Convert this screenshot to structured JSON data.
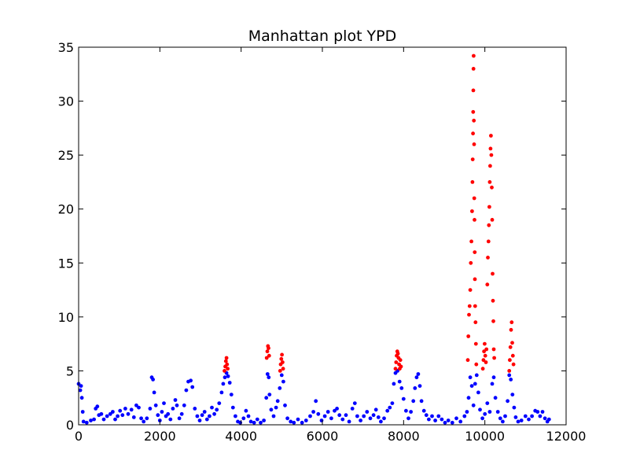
{
  "chart_data": {
    "type": "scatter",
    "title": "Manhattan plot YPD",
    "xlabel": "",
    "ylabel": "",
    "xlim": [
      0,
      12000
    ],
    "ylim": [
      0,
      35
    ],
    "xticks": [
      "0",
      "2000",
      "4000",
      "6000",
      "8000",
      "10000",
      "12000"
    ],
    "yticks": [
      "0",
      "5",
      "10",
      "15",
      "20",
      "25",
      "30",
      "35"
    ],
    "xtick_values": [
      0,
      2000,
      4000,
      6000,
      8000,
      10000,
      12000
    ],
    "ytick_values": [
      0,
      5,
      10,
      15,
      20,
      25,
      30,
      35
    ],
    "grid": false,
    "legend": "none",
    "colors": {
      "below_threshold": "#0000ff",
      "above_threshold": "#ff0000"
    },
    "series": [
      {
        "color": "#0000ff",
        "points": [
          [
            0,
            3.8
          ],
          [
            40,
            3.2
          ],
          [
            60,
            3.6
          ],
          [
            80,
            2.5
          ],
          [
            100,
            1.2
          ],
          [
            120,
            0.3
          ],
          [
            200,
            0.2
          ],
          [
            300,
            0.4
          ],
          [
            380,
            0.5
          ],
          [
            420,
            1.5
          ],
          [
            460,
            1.7
          ],
          [
            500,
            0.9
          ],
          [
            560,
            1.0
          ],
          [
            620,
            0.5
          ],
          [
            700,
            0.8
          ],
          [
            780,
            1.0
          ],
          [
            840,
            1.2
          ],
          [
            900,
            0.5
          ],
          [
            960,
            0.8
          ],
          [
            1020,
            1.3
          ],
          [
            1080,
            0.9
          ],
          [
            1150,
            1.5
          ],
          [
            1220,
            1.0
          ],
          [
            1300,
            1.4
          ],
          [
            1360,
            0.7
          ],
          [
            1420,
            1.8
          ],
          [
            1480,
            1.6
          ],
          [
            1540,
            0.6
          ],
          [
            1600,
            0.3
          ],
          [
            1680,
            0.6
          ],
          [
            1760,
            1.5
          ],
          [
            1800,
            4.4
          ],
          [
            1830,
            4.2
          ],
          [
            1860,
            3.0
          ],
          [
            1900,
            1.8
          ],
          [
            1950,
            0.9
          ],
          [
            2000,
            0.4
          ],
          [
            2050,
            1.2
          ],
          [
            2100,
            2.0
          ],
          [
            2150,
            0.8
          ],
          [
            2200,
            1.0
          ],
          [
            2260,
            0.5
          ],
          [
            2320,
            1.5
          ],
          [
            2380,
            2.3
          ],
          [
            2420,
            1.8
          ],
          [
            2480,
            0.6
          ],
          [
            2540,
            1.0
          ],
          [
            2600,
            1.8
          ],
          [
            2650,
            3.2
          ],
          [
            2700,
            4.0
          ],
          [
            2760,
            4.1
          ],
          [
            2800,
            3.5
          ],
          [
            2860,
            1.5
          ],
          [
            2920,
            0.8
          ],
          [
            2980,
            0.4
          ],
          [
            3040,
            0.9
          ],
          [
            3100,
            1.2
          ],
          [
            3160,
            0.5
          ],
          [
            3220,
            0.8
          ],
          [
            3280,
            1.6
          ],
          [
            3340,
            1.0
          ],
          [
            3400,
            1.4
          ],
          [
            3460,
            2.0
          ],
          [
            3520,
            3.0
          ],
          [
            3560,
            3.8
          ],
          [
            3600,
            4.4
          ],
          [
            3640,
            4.8
          ],
          [
            3680,
            4.5
          ],
          [
            3720,
            3.9
          ],
          [
            3760,
            2.8
          ],
          [
            3800,
            1.6
          ],
          [
            3860,
            0.8
          ],
          [
            3920,
            0.3
          ],
          [
            3980,
            0.2
          ],
          [
            4060,
            0.6
          ],
          [
            4120,
            1.3
          ],
          [
            4180,
            0.8
          ],
          [
            4240,
            0.3
          ],
          [
            4320,
            0.2
          ],
          [
            4400,
            0.5
          ],
          [
            4480,
            0.2
          ],
          [
            4560,
            0.4
          ],
          [
            4620,
            2.5
          ],
          [
            4650,
            4.7
          ],
          [
            4680,
            4.4
          ],
          [
            4700,
            2.8
          ],
          [
            4740,
            1.4
          ],
          [
            4800,
            0.8
          ],
          [
            4860,
            1.6
          ],
          [
            4900,
            2.2
          ],
          [
            4950,
            3.4
          ],
          [
            5000,
            4.6
          ],
          [
            5040,
            4.0
          ],
          [
            5080,
            1.8
          ],
          [
            5140,
            0.6
          ],
          [
            5220,
            0.3
          ],
          [
            5300,
            0.2
          ],
          [
            5400,
            0.5
          ],
          [
            5500,
            0.2
          ],
          [
            5600,
            0.4
          ],
          [
            5700,
            0.8
          ],
          [
            5780,
            1.2
          ],
          [
            5840,
            2.2
          ],
          [
            5900,
            1.0
          ],
          [
            5980,
            0.4
          ],
          [
            6060,
            0.8
          ],
          [
            6140,
            1.2
          ],
          [
            6220,
            0.6
          ],
          [
            6300,
            1.3
          ],
          [
            6360,
            1.5
          ],
          [
            6420,
            0.9
          ],
          [
            6500,
            0.5
          ],
          [
            6580,
            0.9
          ],
          [
            6660,
            0.3
          ],
          [
            6740,
            1.5
          ],
          [
            6800,
            2.0
          ],
          [
            6860,
            0.8
          ],
          [
            6940,
            0.4
          ],
          [
            7020,
            0.8
          ],
          [
            7100,
            1.2
          ],
          [
            7180,
            0.6
          ],
          [
            7260,
            0.9
          ],
          [
            7320,
            1.4
          ],
          [
            7380,
            0.7
          ],
          [
            7440,
            0.3
          ],
          [
            7520,
            0.6
          ],
          [
            7600,
            1.3
          ],
          [
            7660,
            1.6
          ],
          [
            7720,
            2.0
          ],
          [
            7760,
            3.8
          ],
          [
            7800,
            4.8
          ],
          [
            7850,
            5.0
          ],
          [
            7900,
            4.0
          ],
          [
            7950,
            3.4
          ],
          [
            8000,
            2.4
          ],
          [
            8060,
            1.3
          ],
          [
            8120,
            0.6
          ],
          [
            8180,
            1.2
          ],
          [
            8240,
            2.2
          ],
          [
            8280,
            3.4
          ],
          [
            8320,
            4.4
          ],
          [
            8360,
            4.7
          ],
          [
            8400,
            3.6
          ],
          [
            8440,
            2.2
          ],
          [
            8500,
            1.3
          ],
          [
            8560,
            0.9
          ],
          [
            8620,
            0.5
          ],
          [
            8700,
            0.8
          ],
          [
            8780,
            0.4
          ],
          [
            8860,
            0.8
          ],
          [
            8940,
            0.5
          ],
          [
            9020,
            0.2
          ],
          [
            9100,
            0.4
          ],
          [
            9200,
            0.2
          ],
          [
            9300,
            0.6
          ],
          [
            9400,
            0.3
          ],
          [
            9500,
            0.8
          ],
          [
            9560,
            1.2
          ],
          [
            9600,
            2.5
          ],
          [
            9640,
            4.4
          ],
          [
            9680,
            3.6
          ],
          [
            9720,
            1.8
          ],
          [
            9760,
            3.8
          ],
          [
            9800,
            4.6
          ],
          [
            9840,
            3.0
          ],
          [
            9880,
            1.4
          ],
          [
            9940,
            0.6
          ],
          [
            10000,
            1.0
          ],
          [
            10060,
            2.0
          ],
          [
            10120,
            1.2
          ],
          [
            10180,
            3.8
          ],
          [
            10220,
            4.4
          ],
          [
            10260,
            2.5
          ],
          [
            10320,
            1.2
          ],
          [
            10380,
            0.6
          ],
          [
            10440,
            0.3
          ],
          [
            10500,
            0.8
          ],
          [
            10560,
            2.2
          ],
          [
            10600,
            4.6
          ],
          [
            10640,
            4.2
          ],
          [
            10680,
            2.8
          ],
          [
            10720,
            1.6
          ],
          [
            10760,
            0.7
          ],
          [
            10820,
            0.3
          ],
          [
            10900,
            0.4
          ],
          [
            11000,
            0.8
          ],
          [
            11080,
            0.5
          ],
          [
            11160,
            0.8
          ],
          [
            11240,
            1.3
          ],
          [
            11300,
            1.2
          ],
          [
            11360,
            0.8
          ],
          [
            11420,
            1.2
          ],
          [
            11480,
            0.6
          ],
          [
            11540,
            0.3
          ],
          [
            11580,
            0.5
          ]
        ]
      },
      {
        "color": "#ff0000",
        "points": [
          [
            3590,
            5.0
          ],
          [
            3610,
            5.4
          ],
          [
            3625,
            5.9
          ],
          [
            3640,
            6.2
          ],
          [
            3655,
            5.6
          ],
          [
            3670,
            5.2
          ],
          [
            4630,
            6.2
          ],
          [
            4645,
            6.8
          ],
          [
            4660,
            7.3
          ],
          [
            4675,
            7.1
          ],
          [
            4690,
            6.4
          ],
          [
            4960,
            5.0
          ],
          [
            4975,
            5.6
          ],
          [
            4990,
            6.1
          ],
          [
            5005,
            6.5
          ],
          [
            5020,
            5.8
          ],
          [
            5035,
            5.2
          ],
          [
            7800,
            5.2
          ],
          [
            7815,
            5.8
          ],
          [
            7830,
            6.4
          ],
          [
            7845,
            6.8
          ],
          [
            7860,
            6.6
          ],
          [
            7875,
            6.2
          ],
          [
            7890,
            5.6
          ],
          [
            7905,
            5.2
          ],
          [
            7920,
            6.0
          ],
          [
            7935,
            5.4
          ],
          [
            9580,
            6.0
          ],
          [
            9595,
            8.2
          ],
          [
            9610,
            10.2
          ],
          [
            9625,
            11.0
          ],
          [
            9640,
            12.5
          ],
          [
            9655,
            15.0
          ],
          [
            9670,
            17.0
          ],
          [
            9685,
            19.8
          ],
          [
            9695,
            22.5
          ],
          [
            9700,
            24.6
          ],
          [
            9708,
            27.0
          ],
          [
            9712,
            29.0
          ],
          [
            9716,
            31.0
          ],
          [
            9720,
            33.0
          ],
          [
            9724,
            34.2
          ],
          [
            9730,
            28.2
          ],
          [
            9735,
            26.0
          ],
          [
            9740,
            21.0
          ],
          [
            9745,
            19.0
          ],
          [
            9750,
            16.0
          ],
          [
            9755,
            13.5
          ],
          [
            9760,
            11.0
          ],
          [
            9770,
            9.5
          ],
          [
            9780,
            7.5
          ],
          [
            9790,
            5.6
          ],
          [
            9950,
            5.2
          ],
          [
            9965,
            6.0
          ],
          [
            9980,
            6.8
          ],
          [
            9995,
            7.5
          ],
          [
            10010,
            6.4
          ],
          [
            10025,
            5.8
          ],
          [
            10040,
            7.0
          ],
          [
            10060,
            13.0
          ],
          [
            10075,
            15.5
          ],
          [
            10090,
            17.0
          ],
          [
            10100,
            18.5
          ],
          [
            10110,
            20.2
          ],
          [
            10120,
            22.5
          ],
          [
            10130,
            24.0
          ],
          [
            10140,
            25.6
          ],
          [
            10150,
            26.8
          ],
          [
            10160,
            25.0
          ],
          [
            10170,
            22.0
          ],
          [
            10180,
            19.0
          ],
          [
            10190,
            14.0
          ],
          [
            10200,
            11.5
          ],
          [
            10210,
            9.6
          ],
          [
            10220,
            7.0
          ],
          [
            10230,
            6.2
          ],
          [
            10600,
            5.0
          ],
          [
            10615,
            6.0
          ],
          [
            10630,
            7.2
          ],
          [
            10645,
            8.8
          ],
          [
            10660,
            9.5
          ],
          [
            10675,
            7.6
          ],
          [
            10690,
            6.4
          ],
          [
            10705,
            5.6
          ]
        ]
      }
    ]
  }
}
